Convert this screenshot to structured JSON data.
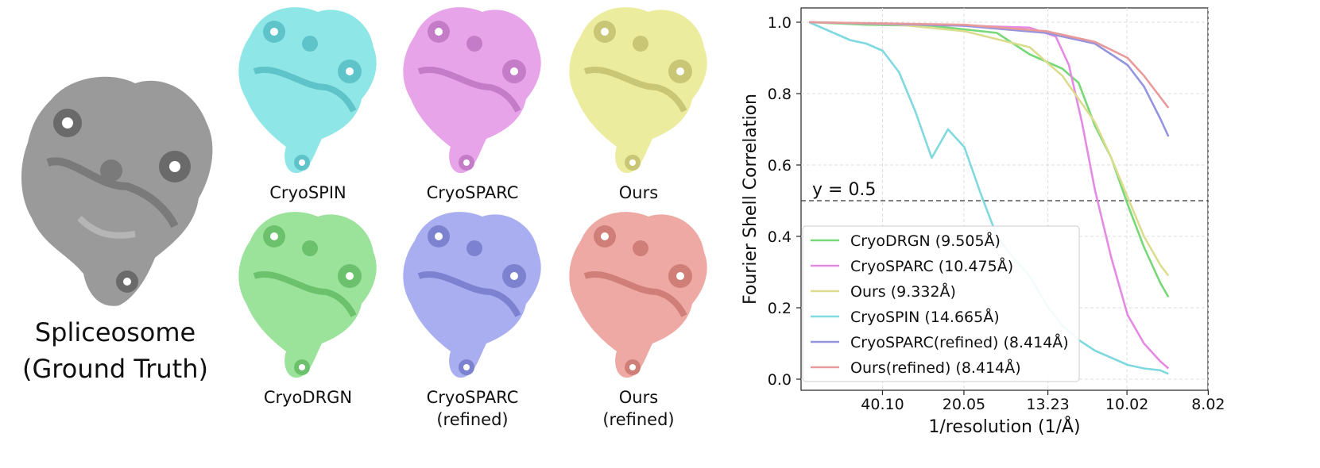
{
  "figure": {
    "ground_truth_caption_line1": "Spliceosome",
    "ground_truth_caption_line2": "(Ground Truth)",
    "maps": [
      {
        "id": "cryospin",
        "label_line1": "CryoSPIN",
        "label_line2": "",
        "color": "#8fe6e6",
        "shade": "#5fc4c9"
      },
      {
        "id": "cryosparc",
        "label_line1": "CryoSPARC",
        "label_line2": "",
        "color": "#e7a4e9",
        "shade": "#c47cc9"
      },
      {
        "id": "ours",
        "label_line1": "Ours",
        "label_line2": "",
        "color": "#ecec9f",
        "shade": "#c9c775"
      },
      {
        "id": "cryodrgn",
        "label_line1": "CryoDRGN",
        "label_line2": "",
        "color": "#9be39b",
        "shade": "#6cc16c"
      },
      {
        "id": "cryosparc-refined",
        "label_line1": "CryoSPARC",
        "label_line2": "(refined)",
        "color": "#a9aef0",
        "shade": "#7c82cf"
      },
      {
        "id": "ours-refined",
        "label_line1": "Ours",
        "label_line2": "(refined)",
        "color": "#eea9a4",
        "shade": "#cf7f78"
      }
    ],
    "ground_truth_colors": {
      "fill": "#9a9a9a",
      "shade": "#6a6a6a"
    }
  },
  "chart_data": {
    "type": "line",
    "xlabel": "1/resolution (1/Å)",
    "ylabel": "Fourier Shell Correlation",
    "x_tick_labels": [
      "40.10",
      "20.05",
      "13.23",
      "10.02",
      "8.02"
    ],
    "y_ticks": [
      "0.0",
      "0.2",
      "0.4",
      "0.6",
      "0.8",
      "1.0"
    ],
    "ylim": [
      0,
      1.04
    ],
    "grid": true,
    "legend_position": "lower-left",
    "reference_line": {
      "y": 0.5,
      "label": "y = 0.5",
      "style": "dashed"
    },
    "x_note": "x axis shows spatial frequency; tick labels give resolution in Å",
    "series": [
      {
        "name": "CryoDRGN (9.505Å)",
        "color": "#77d877",
        "x": [
          0.0025,
          0.02,
          0.04,
          0.06,
          0.07,
          0.08,
          0.085,
          0.09,
          0.095,
          0.1,
          0.105,
          0.11,
          0.1125
        ],
        "y": [
          1.0,
          0.993,
          0.99,
          0.97,
          0.91,
          0.87,
          0.83,
          0.71,
          0.62,
          0.49,
          0.37,
          0.27,
          0.23
        ]
      },
      {
        "name": "CryoSPARC (10.475Å)",
        "color": "#e48ae4",
        "x": [
          0.0025,
          0.04,
          0.07,
          0.078,
          0.082,
          0.086,
          0.09,
          0.095,
          0.1,
          0.105,
          0.11,
          0.1125
        ],
        "y": [
          1.0,
          0.993,
          0.985,
          0.96,
          0.88,
          0.72,
          0.53,
          0.34,
          0.18,
          0.1,
          0.05,
          0.03
        ]
      },
      {
        "name": "Ours (9.332Å)",
        "color": "#dcdc8e",
        "x": [
          0.0025,
          0.03,
          0.05,
          0.07,
          0.08,
          0.09,
          0.095,
          0.1,
          0.105,
          0.11,
          0.1125
        ],
        "y": [
          1.0,
          0.993,
          0.975,
          0.93,
          0.85,
          0.72,
          0.62,
          0.51,
          0.4,
          0.32,
          0.29
        ]
      },
      {
        "name": "CryoSPIN (14.665Å)",
        "color": "#7fd9de",
        "x": [
          0.0025,
          0.005,
          0.01,
          0.015,
          0.02,
          0.025,
          0.03,
          0.035,
          0.04,
          0.045,
          0.05,
          0.055,
          0.06,
          0.065,
          0.07,
          0.075,
          0.08,
          0.085,
          0.09,
          0.095,
          0.1,
          0.105,
          0.11,
          0.1125
        ],
        "y": [
          1.0,
          0.99,
          0.97,
          0.95,
          0.94,
          0.92,
          0.86,
          0.75,
          0.62,
          0.7,
          0.65,
          0.52,
          0.4,
          0.34,
          0.29,
          0.21,
          0.15,
          0.11,
          0.08,
          0.06,
          0.04,
          0.03,
          0.025,
          0.015
        ]
      },
      {
        "name": "CryoSPARC(refined) (8.414Å)",
        "color": "#9494e0",
        "x": [
          0.0025,
          0.05,
          0.075,
          0.09,
          0.1,
          0.105,
          0.11,
          0.1125
        ],
        "y": [
          1.0,
          0.99,
          0.97,
          0.94,
          0.88,
          0.82,
          0.73,
          0.68
        ]
      },
      {
        "name": "Ours(refined) (8.414Å)",
        "color": "#e89a9a",
        "x": [
          0.0025,
          0.05,
          0.075,
          0.09,
          0.1,
          0.105,
          0.11,
          0.1125
        ],
        "y": [
          1.0,
          0.993,
          0.975,
          0.945,
          0.9,
          0.85,
          0.79,
          0.76
        ]
      }
    ]
  }
}
